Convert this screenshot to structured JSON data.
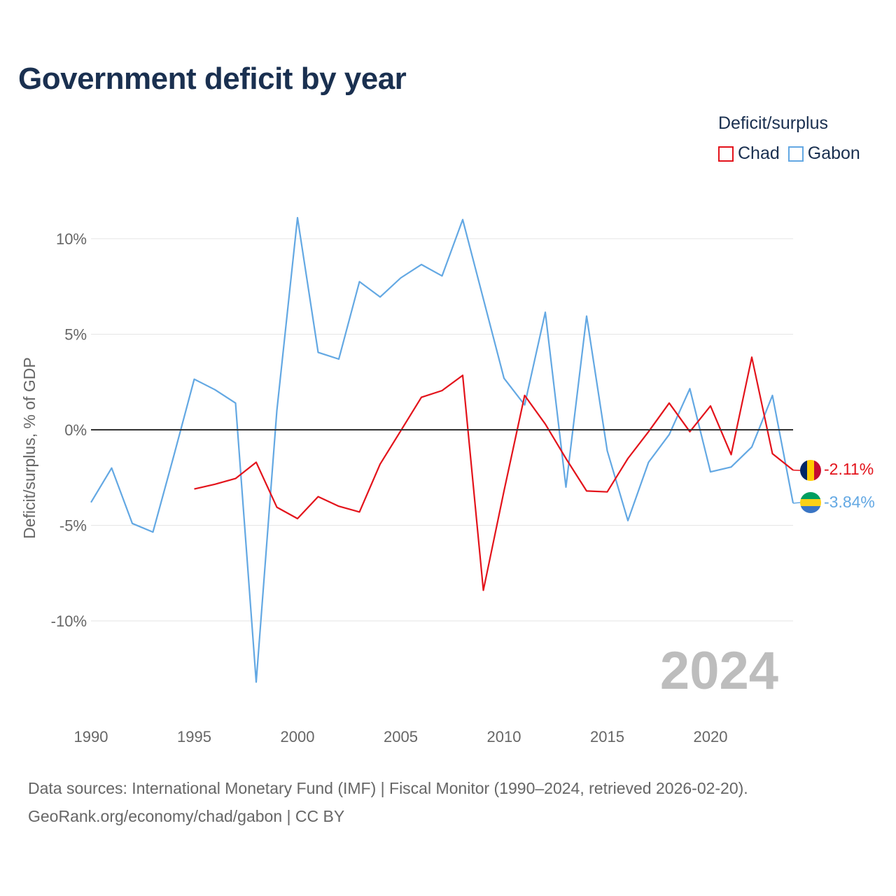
{
  "title": "Government deficit by year",
  "legend": {
    "title": "Deficit/surplus",
    "items": [
      {
        "label": "Chad",
        "color": "#e3131b"
      },
      {
        "label": "Gabon",
        "color": "#63a8e3"
      }
    ]
  },
  "footer": {
    "line1": "Data sources: International Monetary Fund (IMF) | Fiscal Monitor (1990–2024, retrieved 2026-02-20).",
    "line2": "GeoRank.org/economy/chad/gabon | CC BY"
  },
  "chart_data": {
    "type": "line",
    "title": "Government deficit by year",
    "xlabel": "",
    "ylabel": "Deficit/surplus, % of GDP",
    "xlim": [
      1990,
      2024
    ],
    "ylim": [
      -14.5,
      12
    ],
    "x_ticks": [
      1990,
      1995,
      2000,
      2005,
      2010,
      2015,
      2020
    ],
    "y_ticks": [
      10,
      5,
      0,
      -5,
      -10
    ],
    "y_tick_labels": [
      "10%",
      "5%",
      "0%",
      "-5%",
      "-10%"
    ],
    "grid": true,
    "year_watermark": "2024",
    "series": [
      {
        "name": "Chad",
        "color": "#e3131b",
        "end_label": "-2.11%",
        "flag": "chad-flag",
        "x": [
          1995,
          1996,
          1997,
          1998,
          1999,
          2000,
          2001,
          2002,
          2003,
          2004,
          2005,
          2006,
          2007,
          2008,
          2009,
          2010,
          2011,
          2012,
          2013,
          2014,
          2015,
          2016,
          2017,
          2018,
          2019,
          2020,
          2021,
          2022,
          2023,
          2024
        ],
        "y": [
          -3.1,
          -2.85,
          -2.55,
          -1.7,
          -4.05,
          -4.65,
          -3.5,
          -4.0,
          -4.3,
          -1.8,
          -0.05,
          1.7,
          2.05,
          2.85,
          -8.4,
          -3.2,
          1.8,
          0.3,
          -1.5,
          -3.2,
          -3.25,
          -1.5,
          -0.1,
          1.4,
          -0.1,
          1.25,
          -1.3,
          3.8,
          -1.25,
          -2.11
        ]
      },
      {
        "name": "Gabon",
        "color": "#63a8e3",
        "end_label": "-3.84%",
        "flag": "gabon-flag",
        "x": [
          1990,
          1991,
          1992,
          1993,
          1994,
          1995,
          1996,
          1997,
          1998,
          1999,
          2000,
          2001,
          2002,
          2003,
          2004,
          2005,
          2006,
          2007,
          2008,
          2009,
          2010,
          2011,
          2012,
          2013,
          2014,
          2015,
          2016,
          2017,
          2018,
          2019,
          2020,
          2021,
          2022,
          2023,
          2024
        ],
        "y": [
          -3.8,
          -2.0,
          -4.9,
          -5.35,
          -1.4,
          2.65,
          2.1,
          1.4,
          -13.2,
          1.0,
          11.1,
          4.05,
          3.7,
          7.75,
          6.95,
          7.95,
          8.65,
          8.05,
          11.0,
          6.85,
          2.7,
          1.3,
          6.15,
          -3.0,
          5.95,
          -1.1,
          -4.75,
          -1.7,
          -0.25,
          2.15,
          -2.2,
          -1.95,
          -0.9,
          1.8,
          -3.84
        ]
      }
    ]
  }
}
